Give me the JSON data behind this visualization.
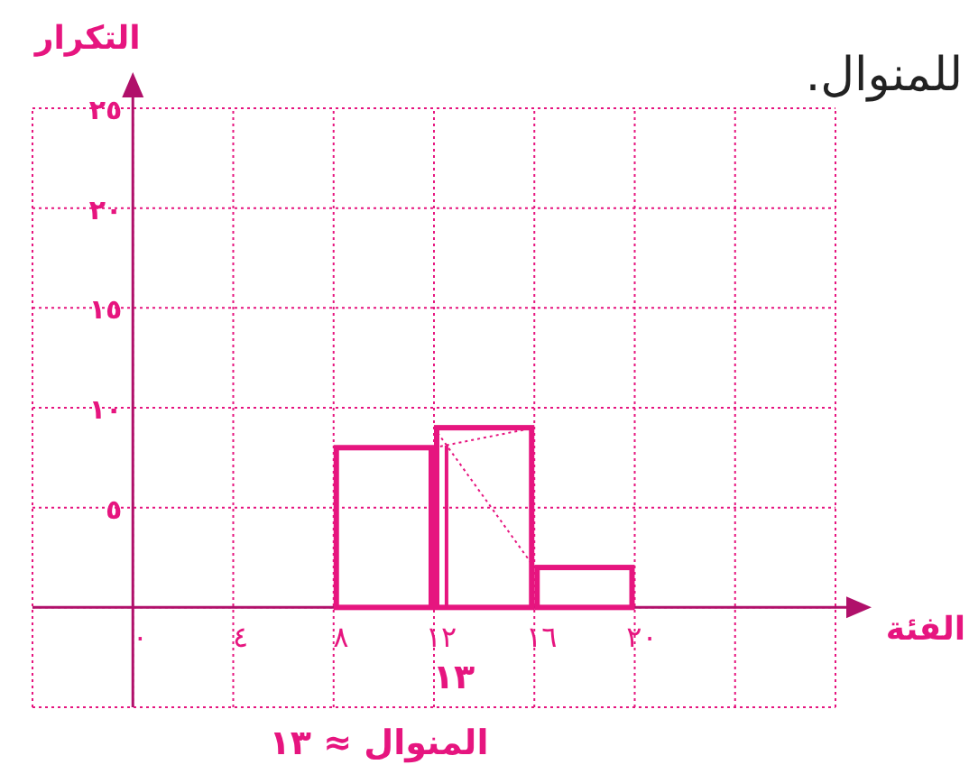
{
  "chart_data": {
    "type": "histogram",
    "title": "للمنوال.",
    "xlabel": "الفئة",
    "ylabel": "التكرار",
    "bins": [
      8,
      12,
      16,
      20
    ],
    "values": [
      8,
      9,
      2
    ],
    "color": "#e6157f",
    "series": [
      {
        "type": "line",
        "x": [
          12,
          16
        ],
        "values": [
          8,
          9
        ],
        "color": "#e6157f",
        "line_style": "dotted"
      },
      {
        "type": "line",
        "x": [
          12,
          16
        ],
        "values": [
          9,
          2
        ],
        "color": "#e6157f",
        "line_style": "dotted"
      },
      {
        "type": "line",
        "x": [
          12.5,
          12.5
        ],
        "values": [
          0,
          8.1
        ],
        "color": "#e6157f",
        "line_style": "solid"
      }
    ],
    "xlim": [
      -4,
      28
    ],
    "ylim": [
      -5,
      25
    ],
    "xticks": [
      {
        "value": -4,
        "label": null
      },
      {
        "value": 0,
        "label": "٠"
      },
      {
        "value": 4,
        "label": "٤"
      },
      {
        "value": 8,
        "label": "٨"
      },
      {
        "value": 12,
        "label": "١٢"
      },
      {
        "value": 16,
        "label": "١٦"
      },
      {
        "value": 20,
        "label": "٢٠"
      },
      {
        "value": 24,
        "label": null
      },
      {
        "value": 28,
        "label": null
      }
    ],
    "yticks": [
      {
        "value": -5,
        "label": null
      },
      {
        "value": 0,
        "label": null
      },
      {
        "value": 5,
        "label": "٥"
      },
      {
        "value": 10,
        "label": "١٠"
      },
      {
        "value": 15,
        "label": "١٥"
      },
      {
        "value": 20,
        "label": "٢٠"
      },
      {
        "value": 25,
        "label": "٢٥"
      }
    ],
    "grid": true,
    "annotations": [
      {
        "text": "١٣",
        "x": 12.5,
        "y": 0
      },
      "المنوال ≈ ١٣"
    ]
  }
}
